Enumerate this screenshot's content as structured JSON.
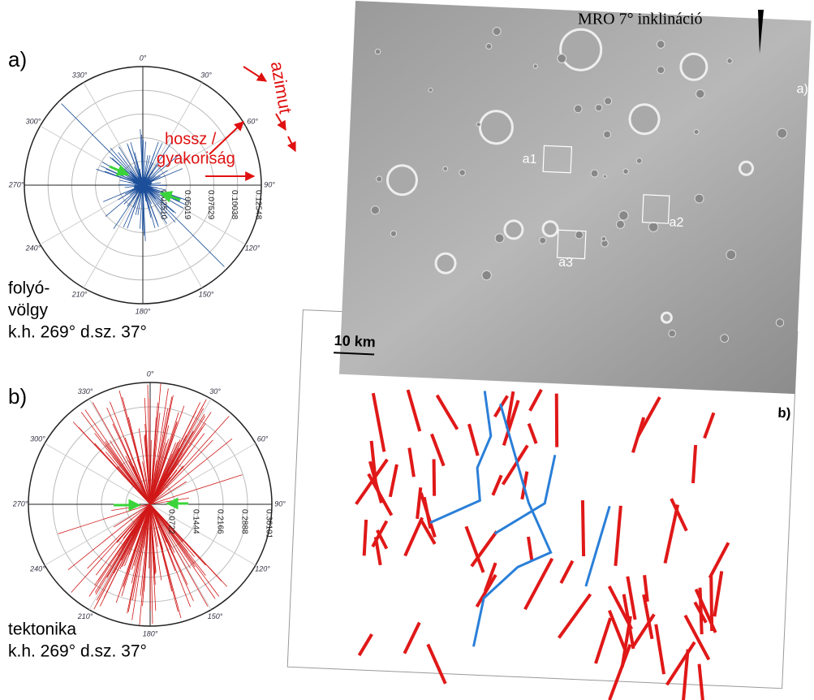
{
  "panel_a": {
    "label": "a)",
    "angle_labels": [
      "0°",
      "30°",
      "60°",
      "90°",
      "120°",
      "150°",
      "180°",
      "210°",
      "240°",
      "270°",
      "300°",
      "330°"
    ],
    "radial_labels": [
      "0.02510",
      "0.05019",
      "0.07529",
      "0.10038",
      "0.12548"
    ],
    "annotations": {
      "length": "hossz /",
      "frequency": "gyakoriság",
      "azimuth": "azimut"
    },
    "caption": [
      "folyó-",
      "völgy",
      "k.h. 269° d.sz. 37°"
    ]
  },
  "panel_b": {
    "label": "b)",
    "angle_labels": [
      "0°",
      "30°",
      "60°",
      "90°",
      "120°",
      "150°",
      "180°",
      "210°",
      "240°",
      "270°",
      "300°",
      "330°"
    ],
    "radial_labels": [
      "0.0722",
      "0.1444",
      "0.2166",
      "0.2888",
      "0.36101"
    ],
    "caption": [
      "tektonika",
      "k.h. 269° d.sz. 37°"
    ]
  },
  "map": {
    "inclination": "MRO 7° inklináció",
    "label_a": "a)",
    "subareas": [
      "a1",
      "a2",
      "a3"
    ],
    "scale": "10 km",
    "label_b": "b)"
  }
}
